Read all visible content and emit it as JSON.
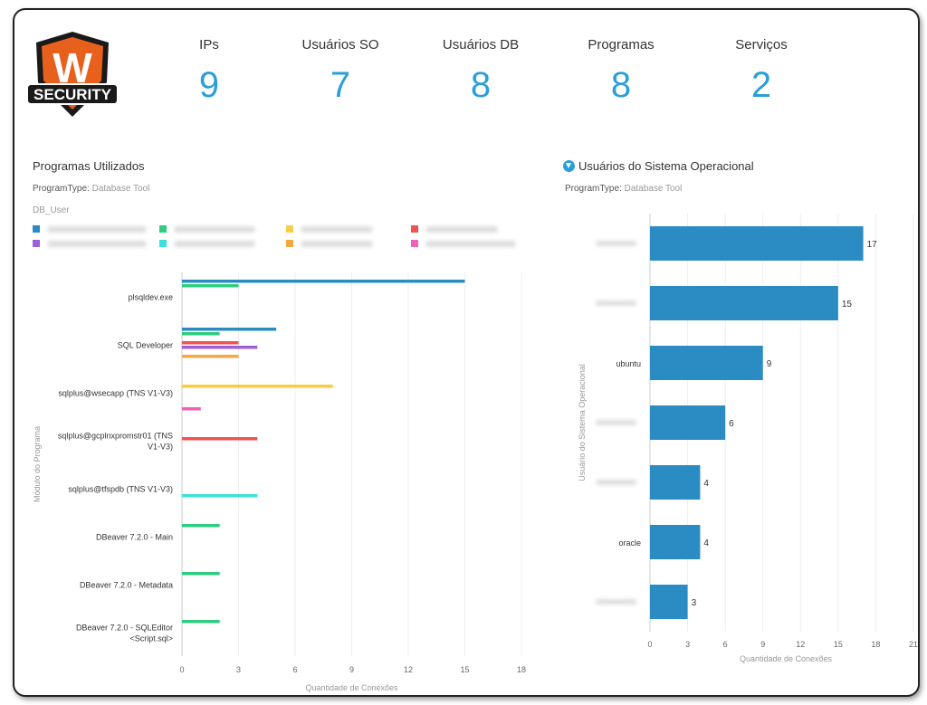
{
  "logo": {
    "text": "W",
    "subtext": "SECURITY"
  },
  "stats": [
    {
      "label": "IPs",
      "value": "9"
    },
    {
      "label": "Usuários SO",
      "value": "7"
    },
    {
      "label": "Usuários DB",
      "value": "8"
    },
    {
      "label": "Programas",
      "value": "8"
    },
    {
      "label": "Serviços",
      "value": "2"
    }
  ],
  "left": {
    "title": "Programas Utilizados",
    "filter_key": "ProgramType:",
    "filter_value": "Database Tool",
    "legend_title": "DB_User"
  },
  "right": {
    "title": "Usuários do Sistema Operacional",
    "filter_key": "ProgramType:",
    "filter_value": "Database Tool",
    "filter_icon": "funnel-icon"
  },
  "chart_data": [
    {
      "type": "bar",
      "orientation": "horizontal",
      "xlabel": "Quantidade de Conexões",
      "ylabel": "Módulo do Programa",
      "xlim": [
        0,
        18
      ],
      "xticks": [
        0,
        3,
        6,
        9,
        12,
        15,
        18
      ],
      "grid": true,
      "legend_placement": "top",
      "series_colors": [
        "#2b8cc4",
        "#2ecc80",
        "#f7cc47",
        "#ef5350",
        "#9b5fd6",
        "#3de0d8",
        "#f5a840",
        "#f060b8"
      ],
      "categories": [
        "plsqldev.exe",
        "SQL Developer",
        "sqlplus@wsecapp (TNS V1-V3)",
        "sqlplus@gcplnxpromstr01 (TNS V1-V3)",
        "sqlplus@tfspdb (TNS V1-V3)",
        "DBeaver 7.2.0 - Main",
        "DBeaver 7.2.0 - Metadata",
        "DBeaver 7.2.0 - SQLEditor <Script.sql>"
      ],
      "series": [
        {
          "values": [
            15,
            5,
            0,
            0,
            0,
            0,
            0,
            0
          ]
        },
        {
          "values": [
            3,
            2,
            0,
            0,
            0,
            2,
            2,
            2
          ]
        },
        {
          "values": [
            0,
            0,
            8,
            0,
            0,
            0,
            0,
            0
          ]
        },
        {
          "values": [
            0,
            3,
            0,
            4,
            0,
            0,
            0,
            0
          ]
        },
        {
          "values": [
            0,
            4,
            0,
            0,
            0,
            0,
            0,
            0
          ]
        },
        {
          "values": [
            0,
            0,
            0,
            0,
            4,
            0,
            0,
            0
          ]
        },
        {
          "values": [
            0,
            3,
            0,
            0,
            0,
            0,
            0,
            0
          ]
        },
        {
          "values": [
            0,
            0,
            1,
            0,
            0,
            0,
            0,
            0
          ]
        }
      ]
    },
    {
      "type": "bar",
      "orientation": "horizontal",
      "xlabel": "Quantidade de Conexões",
      "ylabel": "Usuário do Sistema Operacional",
      "xlim": [
        0,
        21
      ],
      "xticks": [
        0,
        3,
        6,
        9,
        12,
        15,
        18,
        21
      ],
      "grid": true,
      "color": "#2b8cc4",
      "categories": [
        "",
        "",
        "ubuntu",
        "",
        "",
        "oracle",
        ""
      ],
      "values": [
        17,
        15,
        9,
        6,
        4,
        4,
        3
      ],
      "data_labels": [
        "17",
        "15",
        "9",
        "6",
        "4",
        "4",
        "3"
      ]
    }
  ]
}
